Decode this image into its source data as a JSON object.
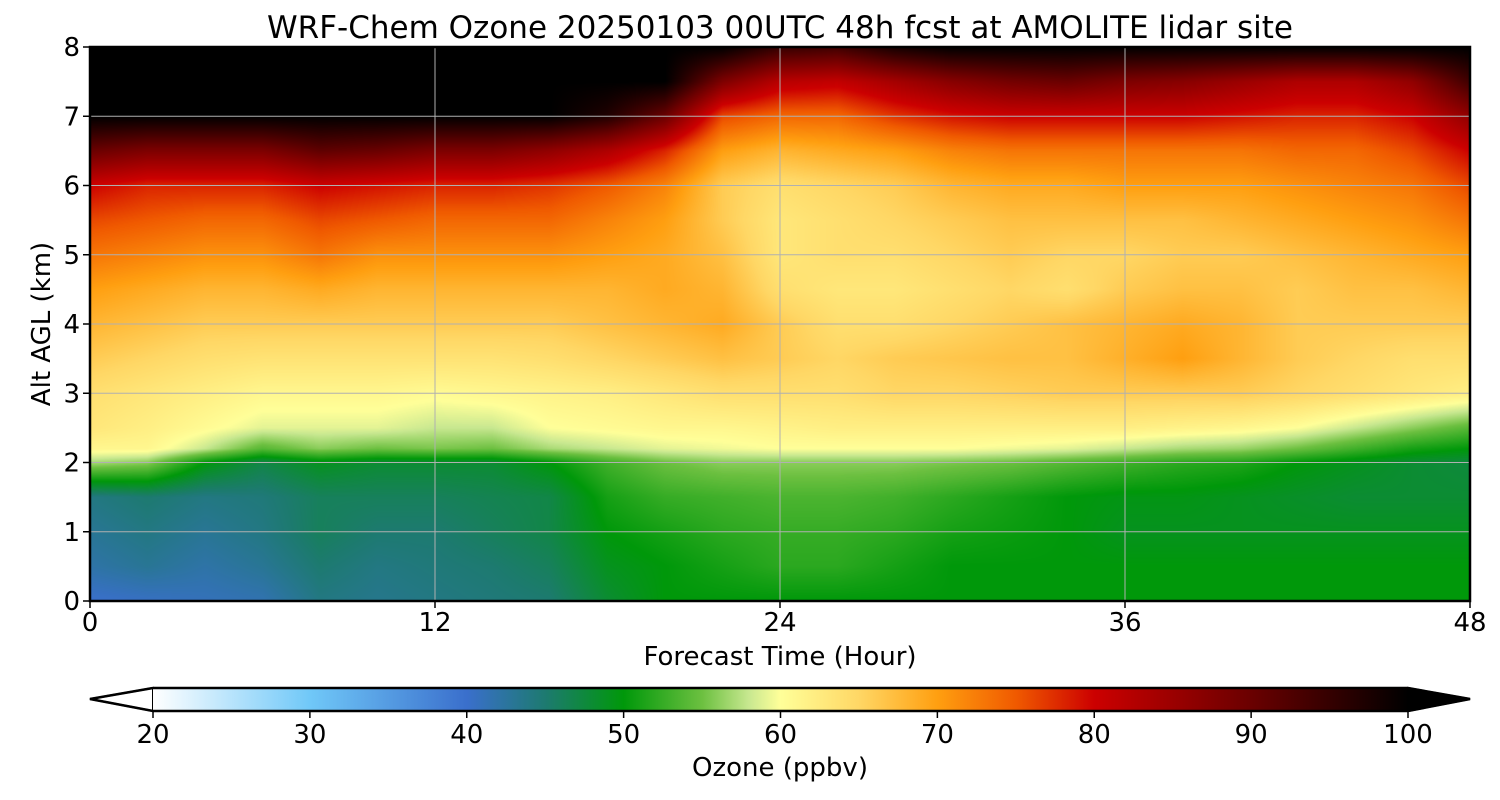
{
  "chart_data": {
    "type": "heatmap",
    "title": "WRF-Chem Ozone  20250103 00UTC 48h fcst at AMOLITE lidar site",
    "xlabel": "Forecast Time (Hour)",
    "ylabel": "Alt AGL (km)",
    "xlim": [
      0,
      48
    ],
    "ylim": [
      0,
      8
    ],
    "x_ticks": [
      "0",
      "12",
      "24",
      "36",
      "48"
    ],
    "y_ticks": [
      "0",
      "1",
      "2",
      "3",
      "4",
      "5",
      "6",
      "7",
      "8"
    ],
    "grid": true,
    "z_units": "ppbv",
    "colorbar": {
      "label": "Ozone  (ppbv)",
      "min": 20,
      "max": 100,
      "extend": "both",
      "ticks": [
        "20",
        "30",
        "40",
        "50",
        "60",
        "70",
        "80",
        "90",
        "100"
      ],
      "colors": [
        {
          "value": 20,
          "color": "#ffffff"
        },
        {
          "value": 30,
          "color": "#70c8f8"
        },
        {
          "value": 40,
          "color": "#3a6fcc"
        },
        {
          "value": 45,
          "color": "#1d7a70"
        },
        {
          "value": 50,
          "color": "#00980a"
        },
        {
          "value": 55,
          "color": "#6cc040"
        },
        {
          "value": 58,
          "color": "#c8e890"
        },
        {
          "value": 60,
          "color": "#ffff99"
        },
        {
          "value": 65,
          "color": "#ffd765"
        },
        {
          "value": 70,
          "color": "#ff9f10"
        },
        {
          "value": 75,
          "color": "#f05a00"
        },
        {
          "value": 80,
          "color": "#cc0000"
        },
        {
          "value": 90,
          "color": "#6a0000"
        },
        {
          "value": 100,
          "color": "#000000"
        }
      ]
    },
    "x": [
      0,
      2,
      4,
      6,
      8,
      10,
      12,
      14,
      16,
      18,
      20,
      22,
      24,
      26,
      28,
      30,
      32,
      34,
      36,
      38,
      40,
      42,
      44,
      46,
      48
    ],
    "y": [
      0,
      0.5,
      1,
      1.5,
      2,
      2.2,
      2.5,
      3,
      3.5,
      4,
      4.5,
      5,
      5.5,
      6,
      6.5,
      7,
      7.5,
      8
    ],
    "z": [
      [
        40,
        40.5,
        41,
        41.5,
        44,
        43.5,
        44,
        44.5,
        45,
        48,
        50,
        50,
        50,
        50,
        50,
        50,
        50,
        50,
        50,
        50,
        50,
        50,
        50,
        50,
        50
      ],
      [
        42,
        43,
        42,
        43,
        45,
        44,
        44.5,
        45,
        46,
        49,
        50,
        51,
        52,
        52,
        51,
        50,
        50,
        50,
        50,
        50,
        50,
        50,
        50,
        50,
        50
      ],
      [
        43,
        44,
        43,
        44,
        46,
        45,
        45,
        46,
        47,
        50,
        51,
        52,
        52.5,
        52.5,
        52,
        51,
        50.5,
        50,
        49,
        49,
        49,
        49,
        49,
        49,
        49
      ],
      [
        44,
        45,
        44,
        44.5,
        46,
        46,
        46,
        46.5,
        47,
        51,
        52.5,
        53,
        53.5,
        53.5,
        53,
        52,
        51,
        50,
        49.5,
        49.5,
        49,
        48.5,
        48,
        48,
        48
      ],
      [
        57,
        56,
        50,
        47,
        49,
        48,
        48,
        48,
        50,
        53,
        55,
        56,
        56,
        56,
        56,
        55.5,
        55,
        54,
        53,
        52,
        51.5,
        50,
        49,
        48,
        47.5
      ],
      [
        61,
        61,
        58,
        54,
        56,
        55,
        55.5,
        55,
        57,
        58,
        59,
        59.5,
        60,
        60,
        60,
        60,
        59.5,
        59,
        58,
        57,
        56.5,
        55,
        53,
        51,
        50
      ],
      [
        63,
        62,
        60.5,
        59,
        59,
        59,
        58,
        58,
        60,
        60.5,
        61,
        61,
        61.5,
        62,
        62,
        62,
        62,
        62,
        62,
        61.5,
        61,
        60,
        58,
        56,
        54
      ],
      [
        64,
        63,
        62,
        61,
        61,
        61,
        60.5,
        61,
        61.5,
        62,
        63,
        64,
        64,
        64,
        65,
        65,
        65.5,
        66,
        66,
        66,
        66,
        65,
        64,
        63,
        62
      ],
      [
        66,
        65,
        64,
        63.5,
        63.5,
        63.5,
        63.5,
        63.5,
        64,
        65,
        66,
        67,
        66,
        65,
        66,
        66.5,
        67,
        67,
        68.5,
        70,
        68,
        66,
        65,
        64,
        64
      ],
      [
        68,
        67,
        66,
        66,
        66,
        66,
        66,
        66,
        66,
        67,
        68,
        69,
        66,
        64,
        64,
        65,
        66,
        67,
        68,
        69,
        68,
        66,
        66,
        66,
        66
      ],
      [
        70,
        69,
        68,
        68,
        69,
        68,
        68,
        68,
        68,
        68,
        69,
        68,
        64,
        63,
        63,
        64,
        65,
        64,
        66,
        67,
        67,
        66,
        67,
        67,
        68
      ],
      [
        73,
        72,
        71,
        71,
        73,
        71,
        71,
        71,
        71,
        70,
        69,
        67,
        63,
        64,
        64,
        65,
        66,
        65,
        65,
        66,
        66,
        67,
        68,
        69,
        70
      ],
      [
        76,
        75,
        74,
        74,
        76,
        75,
        74,
        74,
        74,
        72,
        70,
        66,
        63,
        64,
        65,
        66,
        67,
        67,
        67,
        67,
        68,
        69,
        70,
        71,
        73
      ],
      [
        80,
        78,
        78,
        78,
        80,
        79,
        78,
        78,
        77,
        75,
        72,
        66,
        64,
        65,
        66,
        68,
        69,
        69,
        70,
        70,
        70,
        71,
        72,
        73,
        76
      ],
      [
        90,
        88,
        88,
        88,
        91,
        90,
        88,
        88,
        86,
        83,
        78,
        70,
        68,
        69,
        70,
        72,
        73,
        73,
        73,
        73,
        73,
        74,
        74,
        76,
        80
      ],
      [
        100,
        100,
        100,
        100,
        100,
        100,
        100,
        100,
        100,
        97,
        90,
        76,
        74,
        74,
        77,
        79,
        80,
        80,
        80,
        80,
        79,
        78,
        78,
        80,
        86
      ],
      [
        100,
        100,
        100,
        100,
        100,
        100,
        100,
        100,
        100,
        100,
        100,
        88,
        82,
        81,
        84,
        87,
        89,
        90,
        88,
        87,
        85,
        83,
        83,
        86,
        94
      ],
      [
        100,
        100,
        100,
        100,
        100,
        100,
        100,
        100,
        100,
        100,
        100,
        100,
        95,
        94,
        98,
        100,
        100,
        100,
        100,
        100,
        100,
        100,
        100,
        100,
        100
      ]
    ]
  }
}
